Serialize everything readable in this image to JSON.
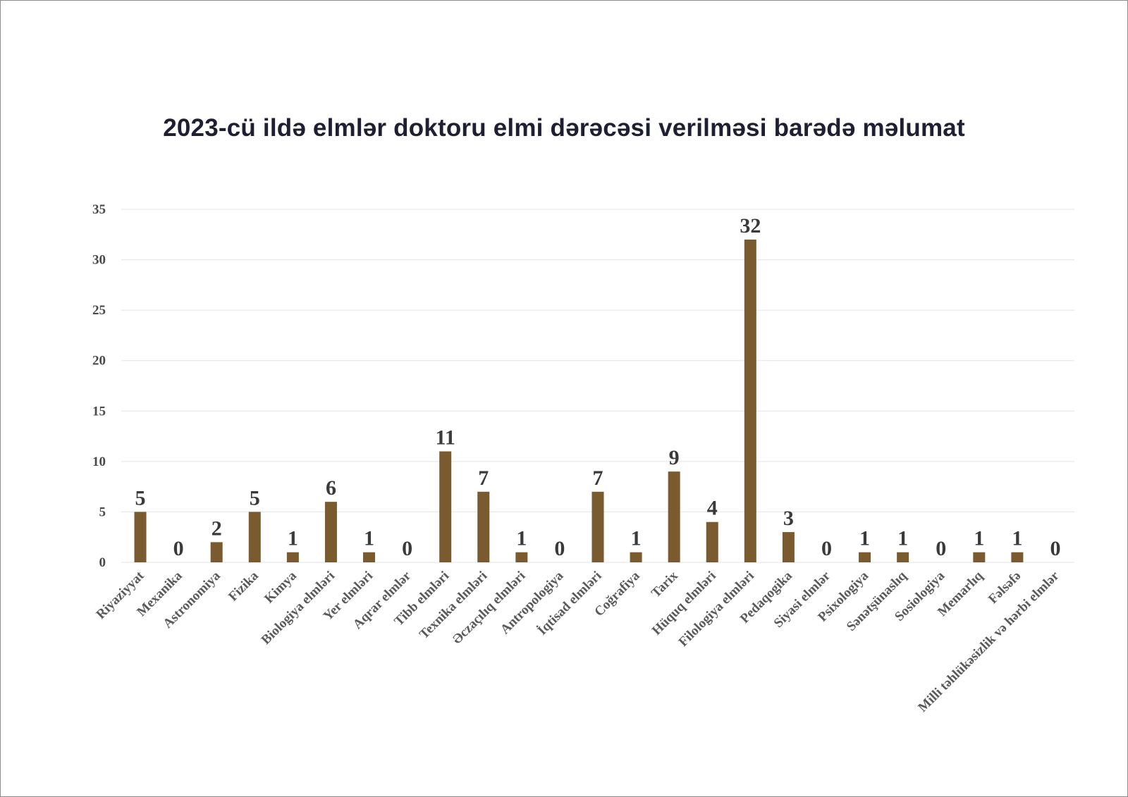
{
  "chart_data": {
    "type": "bar",
    "title": "2023-cü ildə elmlər doktoru elmi dərəcəsi verilməsi barədə məlumat",
    "xlabel": "",
    "ylabel": "",
    "ylim": [
      0,
      35
    ],
    "yticks": [
      0,
      5,
      10,
      15,
      20,
      25,
      30,
      35
    ],
    "grid": true,
    "bar_color": "#7a5a2f",
    "categories": [
      "Riyaziyyat",
      "Mexanika",
      "Astronomiya",
      "Fizika",
      "Kimya",
      "Biologiya elmləri",
      "Yer elmləri",
      "Aqrar elmlər",
      "Tibb elmləri",
      "Texnika elmləri",
      "Əczaçılıq elmləri",
      "Antropologiya",
      "İqtisad elmləri",
      "Coğrafiya",
      "Tarix",
      "Hüquq elmləri",
      "Filologiya elmləri",
      "Pedaqogika",
      "Siyasi elmlər",
      "Psixologiya",
      "Sənətşünaslıq",
      "Sosiologiya",
      "Memarlıq",
      "Fəlsəfə",
      "Milli təhlükəsizlik və hərbi elmlər"
    ],
    "values": [
      5,
      0,
      2,
      5,
      1,
      6,
      1,
      0,
      11,
      7,
      1,
      0,
      7,
      1,
      9,
      4,
      32,
      3,
      0,
      1,
      1,
      0,
      1,
      1,
      0
    ]
  }
}
